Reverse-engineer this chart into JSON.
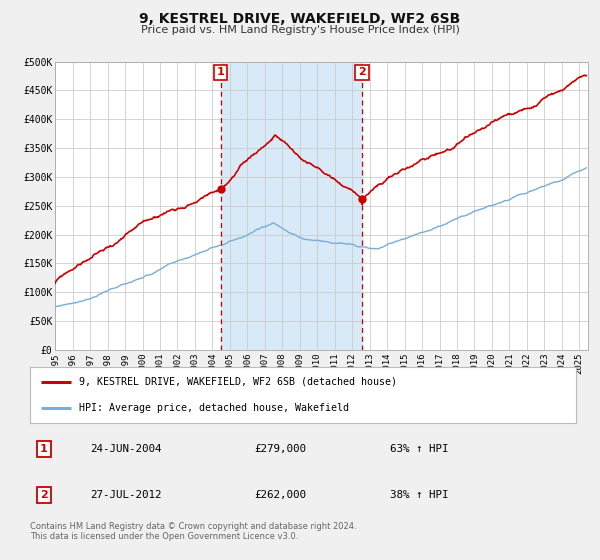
{
  "title": "9, KESTREL DRIVE, WAKEFIELD, WF2 6SB",
  "subtitle": "Price paid vs. HM Land Registry's House Price Index (HPI)",
  "ylim": [
    0,
    500000
  ],
  "yticks": [
    0,
    50000,
    100000,
    150000,
    200000,
    250000,
    300000,
    350000,
    400000,
    450000,
    500000
  ],
  "ytick_labels": [
    "£0",
    "£50K",
    "£100K",
    "£150K",
    "£200K",
    "£250K",
    "£300K",
    "£350K",
    "£400K",
    "£450K",
    "£500K"
  ],
  "xlim_start": 1995.0,
  "xlim_end": 2025.5,
  "xtick_years": [
    1995,
    1996,
    1997,
    1998,
    1999,
    2000,
    2001,
    2002,
    2003,
    2004,
    2005,
    2006,
    2007,
    2008,
    2009,
    2010,
    2011,
    2012,
    2013,
    2014,
    2015,
    2016,
    2017,
    2018,
    2019,
    2020,
    2021,
    2022,
    2023,
    2024,
    2025
  ],
  "red_line_color": "#cc0000",
  "blue_line_color": "#7aaed6",
  "point1_x": 2004.48,
  "point1_y": 279000,
  "point2_x": 2012.57,
  "point2_y": 262000,
  "vline1_x": 2004.48,
  "vline2_x": 2012.57,
  "shade_xmin": 2004.48,
  "shade_xmax": 2012.57,
  "shade_color": "#d8eaf7",
  "legend_label_red": "9, KESTREL DRIVE, WAKEFIELD, WF2 6SB (detached house)",
  "legend_label_blue": "HPI: Average price, detached house, Wakefield",
  "table_rows": [
    {
      "num": "1",
      "date": "24-JUN-2004",
      "price": "£279,000",
      "pct": "63% ↑ HPI"
    },
    {
      "num": "2",
      "date": "27-JUL-2012",
      "price": "£262,000",
      "pct": "38% ↑ HPI"
    }
  ],
  "footnote": "Contains HM Land Registry data © Crown copyright and database right 2024.\nThis data is licensed under the Open Government Licence v3.0.",
  "bg_color": "#f0f0f0",
  "plot_bg_color": "#ffffff",
  "grid_color": "#cccccc",
  "title_fontsize": 10,
  "subtitle_fontsize": 8
}
